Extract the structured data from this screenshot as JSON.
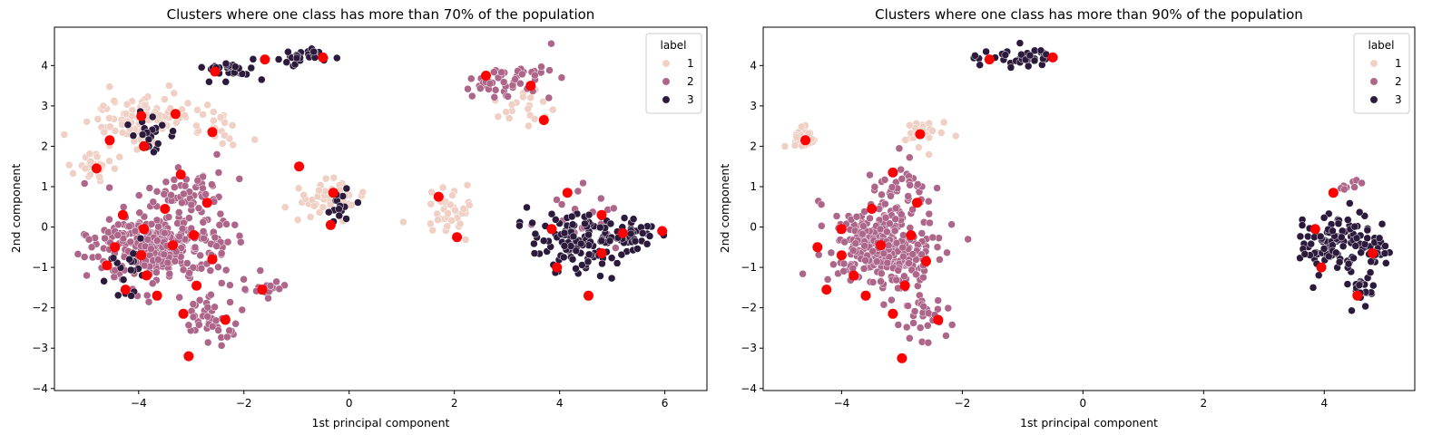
{
  "figure": {
    "colors": {
      "label_1": "#f0d0c4",
      "label_2": "#ad6589",
      "label_3": "#2c1a3c",
      "centroid": "#ff0000"
    }
  },
  "chart_data": [
    {
      "type": "scatter",
      "title": "Clusters where one class has more than 70% of the population",
      "xlabel": "1st principal component",
      "ylabel": "2nd component",
      "xlim": [
        -5.6,
        6.8
      ],
      "ylim": [
        -4.05,
        4.95
      ],
      "xticks": [
        -4,
        -2,
        0,
        2,
        4,
        6
      ],
      "yticks": [
        -4,
        -3,
        -2,
        -1,
        0,
        1,
        2,
        3,
        4
      ],
      "legend": {
        "title": "label",
        "entries": [
          "1",
          "2",
          "3"
        ],
        "location": "upper right"
      },
      "clusters": [
        {
          "label": "1",
          "center": [
            -4.0,
            2.7
          ],
          "spread": [
            0.8,
            0.6
          ],
          "n": 90
        },
        {
          "label": "1",
          "center": [
            -4.8,
            1.5
          ],
          "spread": [
            0.4,
            0.3
          ],
          "n": 25
        },
        {
          "label": "1",
          "center": [
            -2.5,
            2.5
          ],
          "spread": [
            0.4,
            0.6
          ],
          "n": 25
        },
        {
          "label": "1",
          "center": [
            -0.5,
            0.7
          ],
          "spread": [
            0.6,
            0.6
          ],
          "n": 45
        },
        {
          "label": "1",
          "center": [
            1.9,
            0.3
          ],
          "spread": [
            0.5,
            0.6
          ],
          "n": 40
        },
        {
          "label": "1",
          "center": [
            3.4,
            2.9
          ],
          "spread": [
            0.5,
            0.4
          ],
          "n": 20
        },
        {
          "label": "2",
          "center": [
            -3.6,
            -0.5
          ],
          "spread": [
            1.1,
            0.9
          ],
          "n": 330
        },
        {
          "label": "2",
          "center": [
            -3.0,
            0.9
          ],
          "spread": [
            0.6,
            0.6
          ],
          "n": 40
        },
        {
          "label": "2",
          "center": [
            -2.7,
            -2.3
          ],
          "spread": [
            0.6,
            0.5
          ],
          "n": 40
        },
        {
          "label": "2",
          "center": [
            -1.6,
            -1.5
          ],
          "spread": [
            0.4,
            0.3
          ],
          "n": 20
        },
        {
          "label": "2",
          "center": [
            3.0,
            3.6
          ],
          "spread": [
            0.8,
            0.4
          ],
          "n": 50
        },
        {
          "label": "2",
          "center": [
            4.5,
            0.3
          ],
          "spread": [
            0.7,
            0.6
          ],
          "n": 25
        },
        {
          "label": "3",
          "center": [
            -2.3,
            3.9
          ],
          "spread": [
            0.5,
            0.2
          ],
          "n": 30
        },
        {
          "label": "3",
          "center": [
            -0.9,
            4.2
          ],
          "spread": [
            0.6,
            0.2
          ],
          "n": 30
        },
        {
          "label": "3",
          "center": [
            -3.8,
            2.3
          ],
          "spread": [
            0.3,
            0.4
          ],
          "n": 30
        },
        {
          "label": "3",
          "center": [
            4.3,
            -0.4
          ],
          "spread": [
            0.8,
            0.7
          ],
          "n": 110
        },
        {
          "label": "3",
          "center": [
            5.3,
            -0.2
          ],
          "spread": [
            0.5,
            0.3
          ],
          "n": 40
        },
        {
          "label": "3",
          "center": [
            -4.3,
            -1.0
          ],
          "spread": [
            0.3,
            0.6
          ],
          "n": 20
        },
        {
          "label": "3",
          "center": [
            -0.2,
            0.5
          ],
          "spread": [
            0.3,
            0.4
          ],
          "n": 15
        }
      ],
      "centroids": [
        [
          -4.8,
          1.45
        ],
        [
          -4.55,
          2.15
        ],
        [
          -3.95,
          2.75
        ],
        [
          -3.3,
          2.8
        ],
        [
          -3.9,
          2.0
        ],
        [
          -2.6,
          2.35
        ],
        [
          -3.2,
          1.3
        ],
        [
          -2.55,
          3.85
        ],
        [
          -1.6,
          4.15
        ],
        [
          -0.5,
          4.2
        ],
        [
          2.6,
          3.75
        ],
        [
          3.45,
          3.5
        ],
        [
          3.7,
          2.65
        ],
        [
          -0.95,
          1.5
        ],
        [
          -0.3,
          0.85
        ],
        [
          -0.35,
          0.05
        ],
        [
          1.7,
          0.75
        ],
        [
          2.05,
          -0.25
        ],
        [
          -4.3,
          0.3
        ],
        [
          -3.5,
          0.45
        ],
        [
          -2.7,
          0.6
        ],
        [
          -3.9,
          -0.05
        ],
        [
          -2.95,
          -0.2
        ],
        [
          -4.45,
          -0.5
        ],
        [
          -3.35,
          -0.45
        ],
        [
          -2.6,
          -0.8
        ],
        [
          -4.6,
          -0.95
        ],
        [
          -3.95,
          -0.7
        ],
        [
          -3.85,
          -1.2
        ],
        [
          -2.9,
          -1.45
        ],
        [
          -4.25,
          -1.55
        ],
        [
          -3.65,
          -1.7
        ],
        [
          -3.15,
          -2.15
        ],
        [
          -2.35,
          -2.3
        ],
        [
          -1.65,
          -1.55
        ],
        [
          -3.05,
          -3.2
        ],
        [
          3.85,
          -0.05
        ],
        [
          4.15,
          0.85
        ],
        [
          4.8,
          0.3
        ],
        [
          4.8,
          -0.65
        ],
        [
          5.2,
          -0.15
        ],
        [
          5.95,
          -0.1
        ],
        [
          3.95,
          -1.0
        ],
        [
          4.55,
          -1.7
        ]
      ]
    },
    {
      "type": "scatter",
      "title": "Clusters where one class has more than 90% of the population",
      "xlabel": "1st principal component",
      "ylabel": "2nd component",
      "xlim": [
        -5.3,
        5.5
      ],
      "ylim": [
        -4.05,
        4.95
      ],
      "xticks": [
        -4,
        -2,
        0,
        2,
        4
      ],
      "yticks": [
        -4,
        -3,
        -2,
        -1,
        0,
        1,
        2,
        3,
        4
      ],
      "legend": {
        "title": "label",
        "entries": [
          "1",
          "2",
          "3"
        ],
        "location": "upper right"
      },
      "clusters": [
        {
          "label": "1",
          "center": [
            -4.6,
            2.2
          ],
          "spread": [
            0.2,
            0.25
          ],
          "n": 35
        },
        {
          "label": "1",
          "center": [
            -2.7,
            2.3
          ],
          "spread": [
            0.45,
            0.3
          ],
          "n": 25
        },
        {
          "label": "2",
          "center": [
            -3.3,
            -0.5
          ],
          "spread": [
            0.75,
            0.85
          ],
          "n": 330
        },
        {
          "label": "2",
          "center": [
            -3.0,
            0.9
          ],
          "spread": [
            0.4,
            0.5
          ],
          "n": 40
        },
        {
          "label": "2",
          "center": [
            -2.6,
            -2.2
          ],
          "spread": [
            0.4,
            0.5
          ],
          "n": 30
        },
        {
          "label": "2",
          "center": [
            4.4,
            1.05
          ],
          "spread": [
            0.2,
            0.2
          ],
          "n": 8
        },
        {
          "label": "3",
          "center": [
            -1.1,
            4.2
          ],
          "spread": [
            0.6,
            0.2
          ],
          "n": 35
        },
        {
          "label": "3",
          "center": [
            4.1,
            -0.4
          ],
          "spread": [
            0.5,
            0.6
          ],
          "n": 100
        },
        {
          "label": "3",
          "center": [
            4.6,
            -1.6
          ],
          "spread": [
            0.25,
            0.3
          ],
          "n": 20
        },
        {
          "label": "3",
          "center": [
            4.8,
            -0.6
          ],
          "spread": [
            0.25,
            0.4
          ],
          "n": 30
        }
      ],
      "centroids": [
        [
          -4.6,
          2.15
        ],
        [
          -2.7,
          2.3
        ],
        [
          -3.15,
          1.35
        ],
        [
          -3.5,
          0.45
        ],
        [
          -2.75,
          0.6
        ],
        [
          -4.0,
          -0.05
        ],
        [
          -2.85,
          -0.2
        ],
        [
          -4.4,
          -0.5
        ],
        [
          -3.35,
          -0.45
        ],
        [
          -2.6,
          -0.85
        ],
        [
          -4.0,
          -0.7
        ],
        [
          -3.8,
          -1.2
        ],
        [
          -2.95,
          -1.45
        ],
        [
          -4.25,
          -1.55
        ],
        [
          -3.6,
          -1.7
        ],
        [
          -3.15,
          -2.15
        ],
        [
          -2.4,
          -2.3
        ],
        [
          -3.0,
          -3.25
        ],
        [
          -1.55,
          4.15
        ],
        [
          -0.5,
          4.2
        ],
        [
          3.85,
          -0.05
        ],
        [
          4.15,
          0.85
        ],
        [
          4.8,
          -0.65
        ],
        [
          3.95,
          -1.0
        ],
        [
          4.55,
          -1.7
        ]
      ]
    }
  ]
}
